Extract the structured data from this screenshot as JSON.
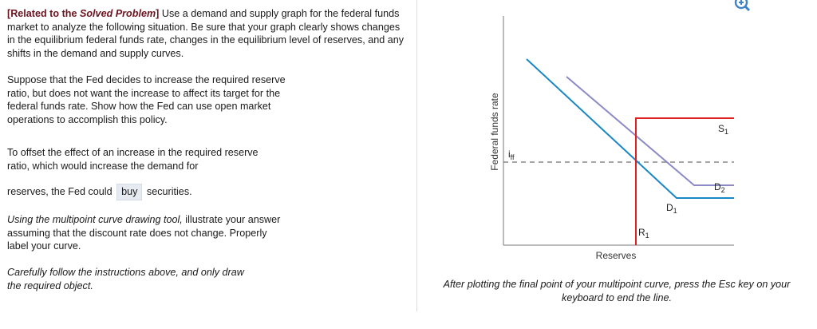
{
  "problem": {
    "related_prefix": "[Related to the ",
    "related_title": "Solved Problem",
    "related_suffix": "]",
    "intro": " Use a demand and supply graph for the federal funds market to analyze the following situation. Be sure that your graph clearly shows changes in the equilibrium federal funds rate, changes in the equilibrium level of reserves, and any shifts in the demand and supply curves.",
    "scenario": "Suppose that the Fed decides to increase the required reserve ratio, but does not want the increase to affect its target for the federal funds rate. Show how the Fed can use open market operations to accomplish this policy.",
    "offset_text": "To offset the effect of an increase in the required reserve ratio, which would increase the demand for",
    "answer_prefix": "reserves, the Fed could",
    "answer_value": "buy",
    "answer_suffix": "securities.",
    "tool_italic": "Using the multipoint curve drawing tool,",
    "tool_rest": " illustrate your answer assuming that the discount rate does not change. Properly label your curve.",
    "careful": "Carefully follow the instructions above, and only draw the required object."
  },
  "graph": {
    "y_axis_label": "Federal funds rate",
    "x_axis_label": "Reserves",
    "rate_label_main": "i",
    "rate_label_sub": "ff",
    "labels": {
      "S1_main": "S",
      "S1_sub": "1",
      "D1_main": "D",
      "D1_sub": "1",
      "D2_main": "D",
      "D2_sub": "2",
      "R1_main": "R",
      "R1_sub": "1"
    },
    "colors": {
      "supply": "#e02020",
      "d1": "#1a87c6",
      "d2": "#8b8ac6",
      "dashed": "#888888"
    }
  },
  "footer": {
    "instruction": "After plotting the final point of your multipoint curve, press the Esc key on your keyboard to end the line."
  }
}
